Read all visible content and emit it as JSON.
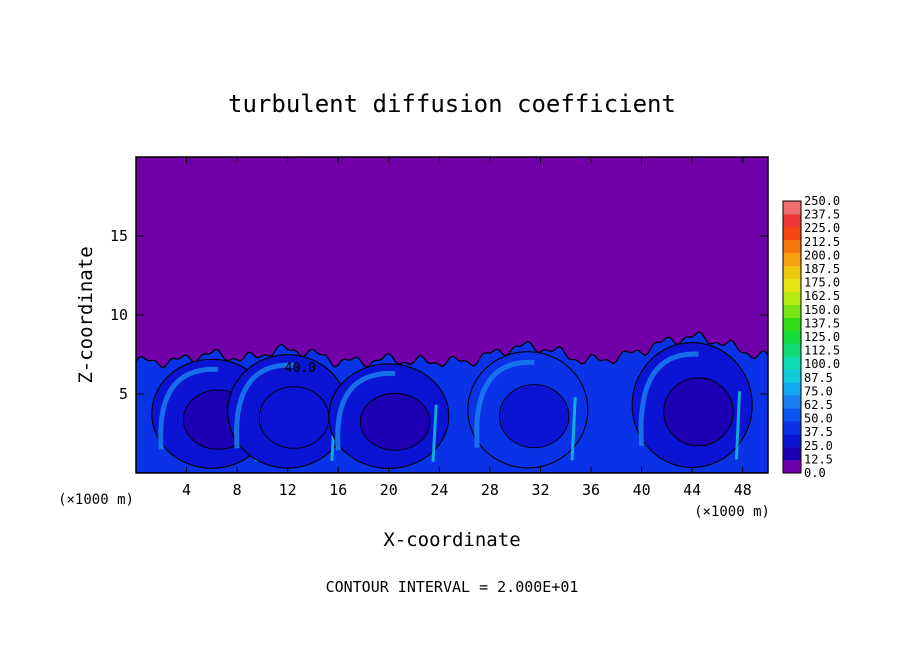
{
  "chart_data": {
    "type": "heatmap",
    "title": "turbulent diffusion coefficient",
    "xlabel": "X-coordinate",
    "ylabel": "Z-coordinate",
    "x_unit": "(×1000 m)",
    "x_unit_right": "(×1000 m)",
    "footer": "CONTOUR INTERVAL = 2.000E+01",
    "xlim": [
      0,
      50
    ],
    "ylim": [
      0,
      20
    ],
    "x_ticks": [
      4,
      8,
      12,
      16,
      20,
      24,
      28,
      32,
      36,
      40,
      44,
      48
    ],
    "y_ticks": [
      5,
      10,
      15
    ],
    "contour_interval": 20,
    "contour_label": "40.0",
    "colorbar": {
      "min": 0,
      "max": 250,
      "step": 12.5,
      "labels": [
        "0.0",
        "12.5",
        "25.0",
        "37.5",
        "50.0",
        "62.5",
        "75.0",
        "87.5",
        "100.0",
        "112.5",
        "125.0",
        "137.5",
        "150.0",
        "162.5",
        "175.0",
        "187.5",
        "200.0",
        "212.5",
        "225.0",
        "237.5",
        "250.0"
      ],
      "colors": [
        "#7200a8",
        "#1e00b4",
        "#0a14d2",
        "#0a32e6",
        "#0a55f0",
        "#1a7ef0",
        "#12a8f0",
        "#10cddc",
        "#10dcb4",
        "#12dc78",
        "#14dc3c",
        "#32dc14",
        "#78e614",
        "#b4ec12",
        "#e6e614",
        "#f0c80f",
        "#f5a00f",
        "#f5780f",
        "#f5460f",
        "#f03737",
        "#f06e6e"
      ]
    },
    "background_value": 0,
    "turbulent_layer_top_z": 8,
    "cells": [
      {
        "x_center": 6,
        "z_top": 7.5,
        "value": 30
      },
      {
        "x_center": 12,
        "z_top": 7.8,
        "value": 35
      },
      {
        "x_center": 20,
        "z_top": 7.2,
        "value": 30
      },
      {
        "x_center": 31,
        "z_top": 8.0,
        "value": 40
      },
      {
        "x_center": 44,
        "z_top": 8.6,
        "value": 30
      }
    ]
  }
}
